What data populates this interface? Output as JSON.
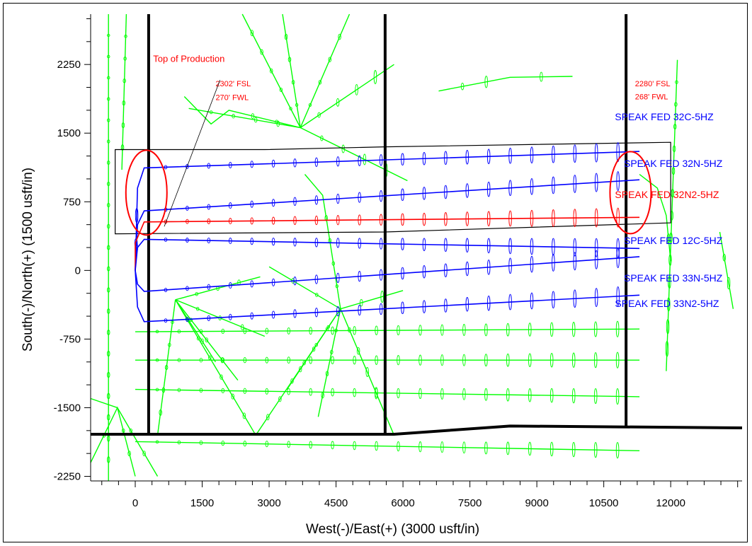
{
  "chart_data": {
    "type": "line",
    "xlabel": "West(-)/East(+) (3000 usft/in)",
    "ylabel": "South(-)/North(+) (1500 usft/in)",
    "xlim": [
      -1000,
      13600
    ],
    "ylim": [
      -2300,
      2800
    ],
    "x_ticks": [
      0,
      1500,
      3000,
      4500,
      6000,
      7500,
      9000,
      10500,
      12000
    ],
    "y_ticks": [
      -2250,
      -1500,
      -750,
      0,
      750,
      1500,
      2250
    ],
    "annotations": [
      {
        "text": "Top of Production",
        "x": 400,
        "y": 2280,
        "color": "#ff0000"
      },
      {
        "text": "2302' FSL",
        "x": 1800,
        "y": 2010,
        "color": "#ff0000"
      },
      {
        "text": "270' FWL",
        "x": 1800,
        "y": 1860,
        "color": "#ff0000"
      },
      {
        "text": "2280' FSL",
        "x": 11200,
        "y": 2010,
        "color": "#ff0000"
      },
      {
        "text": "268' FWL",
        "x": 11200,
        "y": 1870,
        "color": "#ff0000"
      }
    ],
    "well_labels": [
      {
        "text": "SPEAK FED 32C-5HZ",
        "color": "#0000ff",
        "x": 10750,
        "y": 1640
      },
      {
        "text": "SPEAK FED 32N-5HZ",
        "color": "#0000ff",
        "x": 10950,
        "y": 1130
      },
      {
        "text": "SPEAK FED 32N2-5HZ",
        "color": "#ff0000",
        "x": 10750,
        "y": 790
      },
      {
        "text": "SPEAK FED 12C-5HZ",
        "color": "#0000ff",
        "x": 10950,
        "y": 290
      },
      {
        "text": "SPEAK FED 33N-5HZ",
        "color": "#0000ff",
        "x": 10950,
        "y": -120
      },
      {
        "text": "SPEAK FED 33N2-5HZ",
        "color": "#0000ff",
        "x": 10750,
        "y": -400
      }
    ],
    "series": [
      {
        "color": "#0000ff",
        "x": [
          0,
          50,
          200,
          11300
        ],
        "y": [
          0,
          900,
          1120,
          1300
        ]
      },
      {
        "color": "#0000ff",
        "x": [
          0,
          50,
          200,
          11300
        ],
        "y": [
          0,
          500,
          650,
          990
        ]
      },
      {
        "color": "#ff0000",
        "x": [
          0,
          0,
          200,
          11300
        ],
        "y": [
          0,
          300,
          530,
          580
        ]
      },
      {
        "color": "#0000ff",
        "x": [
          0,
          50,
          200,
          11300
        ],
        "y": [
          0,
          250,
          340,
          240
        ]
      },
      {
        "color": "#0000ff",
        "x": [
          0,
          50,
          200,
          11300
        ],
        "y": [
          0,
          -150,
          -230,
          150
        ]
      },
      {
        "color": "#0000ff",
        "x": [
          0,
          50,
          200,
          11300
        ],
        "y": [
          0,
          -400,
          -560,
          -270
        ]
      },
      {
        "color": "#00ff00",
        "x": [
          0,
          11300
        ],
        "y": [
          -670,
          -640
        ]
      },
      {
        "color": "#00ff00",
        "x": [
          0,
          11300
        ],
        "y": [
          -980,
          -980
        ]
      },
      {
        "color": "#00ff00",
        "x": [
          0,
          11300
        ],
        "y": [
          -1300,
          -1380
        ]
      },
      {
        "color": "#00ff00",
        "x": [
          0,
          11300
        ],
        "y": [
          -1870,
          -1970
        ]
      },
      {
        "color": "#00ff00",
        "x": [
          1200,
          3700,
          5800
        ],
        "y": [
          1770,
          1560,
          2250
        ]
      },
      {
        "color": "#00ff00",
        "x": [
          3700,
          2100,
          1700,
          1100
        ],
        "y": [
          1560,
          1750,
          1600,
          1900
        ]
      },
      {
        "color": "#00ff00",
        "x": [
          3700,
          6100
        ],
        "y": [
          1560,
          980
        ]
      },
      {
        "color": "#00ff00",
        "x": [
          3700,
          4800
        ],
        "y": [
          1560,
          2800
        ]
      },
      {
        "color": "#00ff00",
        "x": [
          3700,
          3300
        ],
        "y": [
          1560,
          2800
        ]
      },
      {
        "color": "#00ff00",
        "x": [
          3700,
          2400
        ],
        "y": [
          1560,
          2800
        ]
      },
      {
        "color": "#00ff00",
        "x": [
          4600,
          4200,
          3800
        ],
        "y": [
          -420,
          820,
          1050
        ]
      },
      {
        "color": "#00ff00",
        "x": [
          4600,
          2700
        ],
        "y": [
          -420,
          -1800
        ]
      },
      {
        "color": "#00ff00",
        "x": [
          4600,
          3400
        ],
        "y": [
          -420,
          -1300
        ]
      },
      {
        "color": "#00ff00",
        "x": [
          4600,
          6000
        ],
        "y": [
          -420,
          -220
        ]
      },
      {
        "color": "#00ff00",
        "x": [
          4600,
          5800
        ],
        "y": [
          -420,
          -1800
        ]
      },
      {
        "color": "#00ff00",
        "x": [
          4600,
          4100
        ],
        "y": [
          -420,
          -1600
        ]
      },
      {
        "color": "#00ff00",
        "x": [
          4600,
          3000
        ],
        "y": [
          -420,
          40
        ]
      },
      {
        "color": "#00ff00",
        "x": [
          900,
          2700
        ],
        "y": [
          -320,
          -1800
        ]
      },
      {
        "color": "#00ff00",
        "x": [
          900,
          500
        ],
        "y": [
          -320,
          -1800
        ]
      },
      {
        "color": "#00ff00",
        "x": [
          900,
          2300
        ],
        "y": [
          -320,
          -1200
        ]
      },
      {
        "color": "#00ff00",
        "x": [
          900,
          1800
        ],
        "y": [
          -320,
          -1000
        ]
      },
      {
        "color": "#00ff00",
        "x": [
          900,
          2900
        ],
        "y": [
          -320,
          -720
        ]
      },
      {
        "color": "#00ff00",
        "x": [
          900,
          2800
        ],
        "y": [
          -320,
          -70
        ]
      },
      {
        "color": "#00ff00",
        "x": [
          -1000,
          -400,
          500
        ],
        "y": [
          -1400,
          -1500,
          -2250
        ]
      },
      {
        "color": "#00ff00",
        "x": [
          -1000,
          -400,
          0
        ],
        "y": [
          -2100,
          -1500,
          -2250
        ]
      },
      {
        "color": "#00ff00",
        "x": [
          -600,
          -600
        ],
        "y": [
          2800,
          -2300
        ]
      },
      {
        "color": "#00ff00",
        "x": [
          -200,
          -300
        ],
        "y": [
          2800,
          1100
        ]
      },
      {
        "color": "#00ff00",
        "x": [
          11300,
          11700,
          11900,
          12000
        ],
        "y": [
          1050,
          900,
          600,
          100
        ]
      },
      {
        "color": "#00ff00",
        "x": [
          12150,
          11900
        ],
        "y": [
          2300,
          -1100
        ]
      },
      {
        "color": "#00ff00",
        "x": [
          6800,
          8400,
          9800
        ],
        "y": [
          1960,
          2110,
          2120
        ]
      },
      {
        "color": "#00ff00",
        "x": [
          13100,
          13400
        ],
        "y": [
          420,
          -420
        ]
      }
    ]
  },
  "overlay": {
    "lease_black": "#000000",
    "ellipse_red": "#ff0000"
  }
}
